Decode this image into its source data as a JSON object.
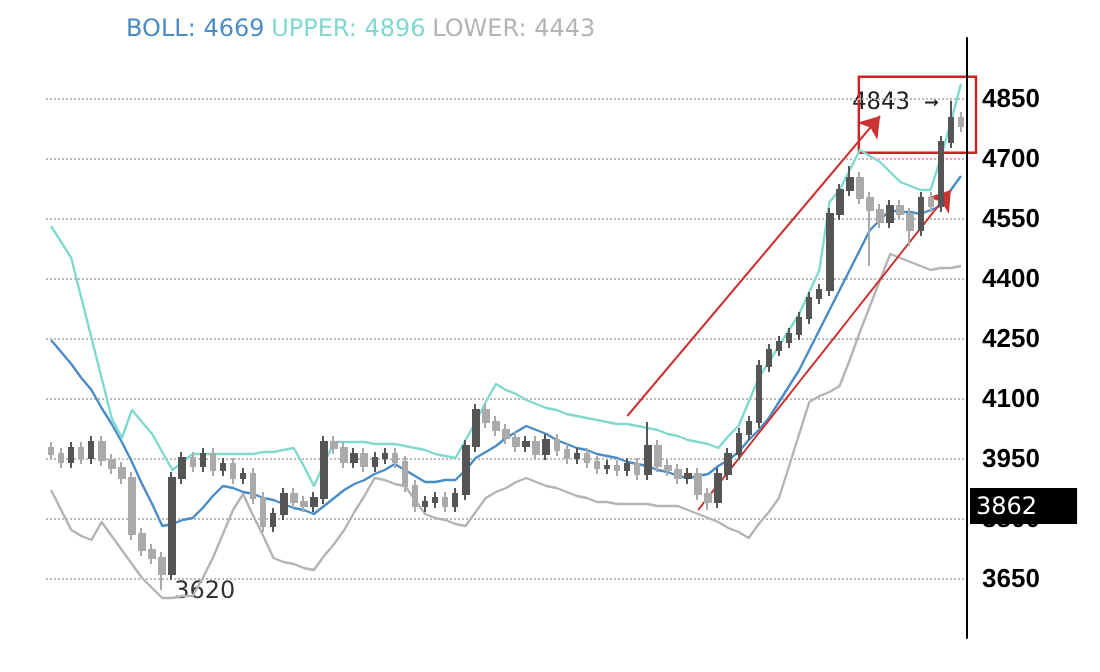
{
  "chart_data": {
    "type": "candlestick",
    "colors": [
      "#aaaaaa",
      "#aaaaaa",
      "#555555",
      "#aaaaaa",
      "#555555",
      "#aaaaaa",
      "#aaaaaa",
      "#aaaaaa",
      "#aaaaaa",
      "#aaaaaa",
      "#aaaaaa",
      "#aaaaaa",
      "#555555",
      "#555555",
      "#aaaaaa",
      "#555555",
      "#aaaaaa",
      "#555555",
      "#aaaaaa",
      "#555555",
      "#aaaaaa",
      "#aaaaaa",
      "#555555",
      "#555555",
      "#aaaaaa",
      "#aaaaaa",
      "#555555",
      "#555555",
      "#aaaaaa",
      "#aaaaaa",
      "#555555",
      "#aaaaaa",
      "#555555",
      "#555555",
      "#aaaaaa",
      "#aaaaaa",
      "#aaaaaa",
      "#555555",
      "#555555",
      "#aaaaaa",
      "#555555",
      "#555555",
      "#555555",
      "#aaaaaa",
      "#aaaaaa",
      "#aaaaaa",
      "#aaaaaa",
      "#555555",
      "#aaaaaa",
      "#555555",
      "#aaaaaa",
      "#aaaaaa",
      "#555555",
      "#aaaaaa",
      "#aaaaaa",
      "#555555",
      "#aaaaaa",
      "#555555",
      "#aaaaaa",
      "#555555",
      "#aaaaaa",
      "#aaaaaa",
      "#aaaaaa",
      "#555555",
      "#aaaaaa",
      "#aaaaaa",
      "#555555",
      "#555555",
      "#555555",
      "#555555",
      "#555555",
      "#555555",
      "#555555",
      "#555555",
      "#555555",
      "#555555",
      "#555555",
      "#555555",
      "#555555",
      "#555555",
      "#aaaaaa",
      "#aaaaaa",
      "#aaaaaa",
      "#555555",
      "#aaaaaa",
      "#aaaaaa",
      "#555555",
      "#aaaaaa",
      "#555555",
      "#555555",
      "#aaaaaa"
    ],
    "categories": [
      null,
      null,
      null,
      null,
      null,
      null,
      null,
      null,
      null,
      null,
      null,
      null,
      null,
      null,
      null,
      null,
      null,
      null,
      null,
      null,
      null,
      null,
      null,
      null,
      null,
      null,
      null,
      null,
      null,
      null,
      null,
      null,
      null,
      null,
      null,
      null,
      null,
      null,
      null,
      null,
      null,
      null,
      null,
      null,
      null,
      null,
      null,
      null,
      null,
      null,
      null,
      null,
      null,
      null,
      null,
      null,
      null,
      null,
      null,
      null,
      null,
      null,
      null,
      null,
      null,
      null,
      null,
      null,
      null,
      null,
      null,
      null,
      null,
      null,
      null,
      null,
      null,
      null,
      null,
      null,
      null,
      null,
      null,
      null,
      null,
      null,
      null,
      null,
      null,
      null,
      null
    ],
    "ohlc": [
      [
        3975,
        3990,
        3945,
        3960
      ],
      [
        3960,
        3975,
        3925,
        3940
      ],
      [
        3940,
        3990,
        3925,
        3975
      ],
      [
        3975,
        3990,
        3935,
        3950
      ],
      [
        3950,
        4005,
        3935,
        3990
      ],
      [
        3990,
        4005,
        3930,
        3945
      ],
      [
        3945,
        3960,
        3910,
        3925
      ],
      [
        3925,
        3940,
        3885,
        3900
      ],
      [
        3900,
        3915,
        3745,
        3760
      ],
      [
        3760,
        3775,
        3705,
        3720
      ],
      [
        3720,
        3735,
        3685,
        3700
      ],
      [
        3700,
        3715,
        3620,
        3660
      ],
      [
        3660,
        3915,
        3645,
        3900
      ],
      [
        3900,
        3965,
        3885,
        3950
      ],
      [
        3950,
        3965,
        3915,
        3930
      ],
      [
        3930,
        3975,
        3915,
        3960
      ],
      [
        3960,
        3975,
        3905,
        3920
      ],
      [
        3920,
        3950,
        3905,
        3935
      ],
      [
        3935,
        3950,
        3885,
        3900
      ],
      [
        3900,
        3925,
        3885,
        3910
      ],
      [
        3910,
        3925,
        3835,
        3850
      ],
      [
        3850,
        3865,
        3765,
        3780
      ],
      [
        3780,
        3825,
        3765,
        3810
      ],
      [
        3810,
        3875,
        3795,
        3860
      ],
      [
        3860,
        3875,
        3825,
        3840
      ],
      [
        3840,
        3855,
        3815,
        3830
      ],
      [
        3830,
        3865,
        3815,
        3850
      ],
      [
        3850,
        4005,
        3835,
        3990
      ],
      [
        3990,
        4005,
        3960,
        3975
      ],
      [
        3975,
        3990,
        3925,
        3940
      ],
      [
        3940,
        3975,
        3925,
        3960
      ],
      [
        3960,
        3975,
        3915,
        3930
      ],
      [
        3930,
        3965,
        3915,
        3950
      ],
      [
        3950,
        3975,
        3935,
        3960
      ],
      [
        3960,
        3975,
        3925,
        3940
      ],
      [
        3940,
        3955,
        3865,
        3880
      ],
      [
        3880,
        3895,
        3815,
        3830
      ],
      [
        3830,
        3855,
        3815,
        3840
      ],
      [
        3840,
        3865,
        3825,
        3850
      ],
      [
        3850,
        3865,
        3815,
        3830
      ],
      [
        3830,
        3875,
        3815,
        3860
      ],
      [
        3860,
        3995,
        3845,
        3980
      ],
      [
        3980,
        4085,
        3965,
        4070
      ],
      [
        4070,
        4085,
        4025,
        4040
      ],
      [
        4040,
        4055,
        4005,
        4020
      ],
      [
        4020,
        4035,
        3985,
        4000
      ],
      [
        4000,
        4015,
        3965,
        3980
      ],
      [
        3980,
        4005,
        3965,
        3990
      ],
      [
        3990,
        4005,
        3945,
        3960
      ],
      [
        3960,
        4010,
        3945,
        3995
      ],
      [
        3995,
        4010,
        3955,
        3970
      ],
      [
        3970,
        3985,
        3935,
        3950
      ],
      [
        3950,
        3975,
        3935,
        3960
      ],
      [
        3960,
        3975,
        3925,
        3940
      ],
      [
        3940,
        3955,
        3910,
        3925
      ],
      [
        3925,
        3945,
        3910,
        3930
      ],
      [
        3930,
        3945,
        3905,
        3920
      ],
      [
        3920,
        3950,
        3905,
        3935
      ],
      [
        3935,
        3950,
        3895,
        3910
      ],
      [
        3910,
        4040,
        3895,
        3980
      ],
      [
        3980,
        3995,
        3915,
        3930
      ],
      [
        3930,
        3945,
        3905,
        3920
      ],
      [
        3920,
        3935,
        3885,
        3900
      ],
      [
        3900,
        3925,
        3885,
        3910
      ],
      [
        3910,
        3925,
        3845,
        3860
      ],
      [
        3860,
        3875,
        3820,
        3840
      ],
      [
        3840,
        3925,
        3825,
        3910
      ],
      [
        3910,
        3975,
        3895,
        3960
      ],
      [
        3960,
        4025,
        3945,
        4010
      ],
      [
        4010,
        4055,
        3995,
        4040
      ],
      [
        4040,
        4195,
        4025,
        4180
      ],
      [
        4180,
        4235,
        4165,
        4220
      ],
      [
        4220,
        4255,
        4205,
        4240
      ],
      [
        4240,
        4275,
        4225,
        4260
      ],
      [
        4260,
        4315,
        4245,
        4300
      ],
      [
        4300,
        4365,
        4285,
        4350
      ],
      [
        4350,
        4385,
        4335,
        4370
      ],
      [
        4370,
        4575,
        4355,
        4560
      ],
      [
        4560,
        4635,
        4545,
        4620
      ],
      [
        4620,
        4680,
        4605,
        4650
      ],
      [
        4650,
        4665,
        4585,
        4600
      ],
      [
        4600,
        4615,
        4430,
        4570
      ],
      [
        4570,
        4585,
        4525,
        4540
      ],
      [
        4540,
        4595,
        4525,
        4580
      ],
      [
        4580,
        4595,
        4545,
        4560
      ],
      [
        4560,
        4575,
        4480,
        4520
      ],
      [
        4520,
        4615,
        4505,
        4600
      ],
      [
        4600,
        4615,
        4565,
        4580
      ],
      [
        4580,
        4755,
        4565,
        4740
      ],
      [
        4740,
        4843,
        4725,
        4800
      ],
      [
        4800,
        4815,
        4765,
        4780
      ]
    ],
    "series": [
      {
        "type": "line",
        "name": "BOLL: 4669",
        "color": "#4a8cc6",
        "values": [
          4245,
          4215,
          4185,
          4150,
          4120,
          4075,
          4035,
          3990,
          3940,
          3885,
          3835,
          3780,
          3785,
          3795,
          3800,
          3825,
          3855,
          3880,
          3875,
          3865,
          3860,
          3850,
          3845,
          3835,
          3825,
          3820,
          3810,
          3830,
          3850,
          3870,
          3885,
          3895,
          3910,
          3920,
          3935,
          3920,
          3905,
          3890,
          3890,
          3895,
          3895,
          3920,
          3950,
          3965,
          3980,
          4000,
          4015,
          4030,
          4020,
          4010,
          3995,
          3985,
          3975,
          3970,
          3960,
          3955,
          3950,
          3940,
          3935,
          3930,
          3920,
          3915,
          3905,
          3900,
          3905,
          3910,
          3930,
          3945,
          3965,
          3995,
          4020,
          4050,
          4090,
          4130,
          4170,
          4220,
          4270,
          4320,
          4370,
          4420,
          4470,
          4520,
          4545,
          4570,
          4565,
          4565,
          4560,
          4570,
          4580,
          4620,
          4655
        ]
      },
      {
        "type": "line",
        "name": "UPPER: 4896",
        "color": "#7fd9d0",
        "values": [
          4530,
          4490,
          4450,
          4350,
          4250,
          4150,
          4050,
          4000,
          4070,
          4040,
          4010,
          3965,
          3920,
          3940,
          3960,
          3960,
          3960,
          3960,
          3960,
          3960,
          3960,
          3965,
          3965,
          3970,
          3975,
          3930,
          3880,
          3935,
          3990,
          3990,
          3990,
          3990,
          3985,
          3985,
          3985,
          3980,
          3975,
          3970,
          3960,
          3955,
          3950,
          3995,
          4040,
          4090,
          4135,
          4120,
          4110,
          4095,
          4085,
          4075,
          4070,
          4060,
          4055,
          4050,
          4045,
          4040,
          4035,
          4035,
          4030,
          4025,
          4020,
          4010,
          4005,
          3995,
          3990,
          3985,
          3975,
          4005,
          4030,
          4090,
          4150,
          4190,
          4230,
          4270,
          4310,
          4365,
          4420,
          4590,
          4620,
          4670,
          4720,
          4705,
          4690,
          4665,
          4640,
          4630,
          4620,
          4620,
          4700,
          4790,
          4885
        ]
      },
      {
        "type": "line",
        "name": "LOWER: 4443",
        "color": "#b4b4b4",
        "values": [
          3870,
          3820,
          3770,
          3755,
          3745,
          3790,
          3755,
          3720,
          3685,
          3650,
          3625,
          3600,
          3600,
          3605,
          3605,
          3650,
          3700,
          3760,
          3820,
          3860,
          3805,
          3755,
          3700,
          3690,
          3685,
          3675,
          3670,
          3705,
          3735,
          3770,
          3815,
          3855,
          3900,
          3895,
          3885,
          3880,
          3845,
          3810,
          3800,
          3795,
          3785,
          3780,
          3815,
          3850,
          3865,
          3875,
          3890,
          3900,
          3890,
          3880,
          3875,
          3865,
          3855,
          3850,
          3840,
          3840,
          3835,
          3835,
          3835,
          3835,
          3830,
          3830,
          3830,
          3820,
          3810,
          3800,
          3790,
          3775,
          3765,
          3750,
          3785,
          3815,
          3850,
          3930,
          4010,
          4090,
          4105,
          4115,
          4130,
          4195,
          4265,
          4330,
          4395,
          4460,
          4450,
          4440,
          4430,
          4420,
          4425,
          4425,
          4430
        ]
      },
      {
        "type": "line",
        "color": "#cc3333",
        "values": [
          null,
          null,
          null,
          null,
          null,
          null,
          null,
          null,
          null,
          null,
          null,
          null,
          null,
          null,
          null,
          null,
          null,
          null,
          null,
          null,
          null,
          null,
          null,
          null,
          null,
          null,
          null,
          null,
          null,
          null,
          null,
          null,
          null,
          null,
          null,
          null,
          null,
          null,
          null,
          null,
          null,
          null,
          null,
          null,
          null,
          null,
          null,
          null,
          null,
          null,
          null,
          null,
          null,
          null,
          null,
          null,
          null,
          4055,
          4085,
          4115,
          4145,
          4175,
          4205,
          4235,
          4265,
          4295,
          4325,
          4355,
          4385,
          4415,
          4445,
          4475,
          4505,
          4535,
          4565,
          4595,
          4625,
          4655,
          4685,
          4715,
          4745,
          4775,
          4805,
          null,
          null,
          null,
          null,
          null,
          null,
          null,
          null
        ]
      },
      {
        "type": "line",
        "color": "#cc3333",
        "values": [
          null,
          null,
          null,
          null,
          null,
          null,
          null,
          null,
          null,
          null,
          null,
          null,
          null,
          null,
          null,
          null,
          null,
          null,
          null,
          null,
          null,
          null,
          null,
          null,
          null,
          null,
          null,
          null,
          null,
          null,
          null,
          null,
          null,
          null,
          null,
          null,
          null,
          null,
          null,
          null,
          null,
          null,
          null,
          null,
          null,
          null,
          null,
          null,
          null,
          null,
          null,
          null,
          null,
          null,
          null,
          null,
          null,
          null,
          null,
          null,
          null,
          null,
          null,
          null,
          3820,
          3852,
          3884,
          3916,
          3948,
          3980,
          4012,
          4044,
          4076,
          4108,
          4140,
          4172,
          4204,
          4236,
          4268,
          4300,
          4332,
          4364,
          4396,
          4428,
          4460,
          4492,
          4524,
          4556,
          4588,
          4620,
          null
        ]
      }
    ],
    "ylim": [
      3500,
      5000
    ],
    "yticks": [
      3650,
      3800,
      3950,
      4100,
      4250,
      4400,
      4550,
      4700,
      4850
    ],
    "tick_labels": "y",
    "grid": "y",
    "annotations": [
      "3620",
      "4843 →",
      "3862"
    ]
  }
}
